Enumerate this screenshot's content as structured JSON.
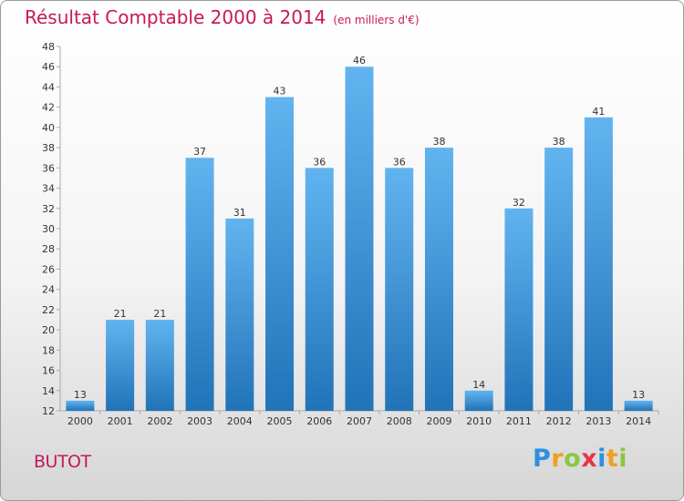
{
  "chart_data": {
    "type": "bar",
    "title": "Résultat Comptable 2000 à 2014",
    "subtitle": "(en milliers d'€)",
    "categories": [
      "2000",
      "2001",
      "2002",
      "2003",
      "2004",
      "2005",
      "2006",
      "2007",
      "2008",
      "2009",
      "2010",
      "2011",
      "2012",
      "2013",
      "2014"
    ],
    "values": [
      13,
      21,
      21,
      37,
      31,
      43,
      36,
      46,
      36,
      38,
      14,
      32,
      38,
      41,
      13
    ],
    "ylim": [
      12,
      48
    ],
    "yticks": [
      12,
      14,
      16,
      18,
      20,
      22,
      24,
      26,
      28,
      30,
      32,
      34,
      36,
      38,
      40,
      42,
      44,
      46,
      48
    ],
    "xlabel": "",
    "ylabel": "",
    "grid": false,
    "bar_color_top": "#62b4f0",
    "bar_color_bottom": "#2173b8"
  },
  "commune": "BUTOT",
  "logo": {
    "letters": [
      "P",
      "r",
      "o",
      "x",
      "i",
      "t",
      "i"
    ],
    "colors": [
      "#2e8fe0",
      "#f0a020",
      "#8dc63f",
      "#e8344a",
      "#2e8fe0",
      "#f0a020",
      "#8dc63f"
    ]
  }
}
